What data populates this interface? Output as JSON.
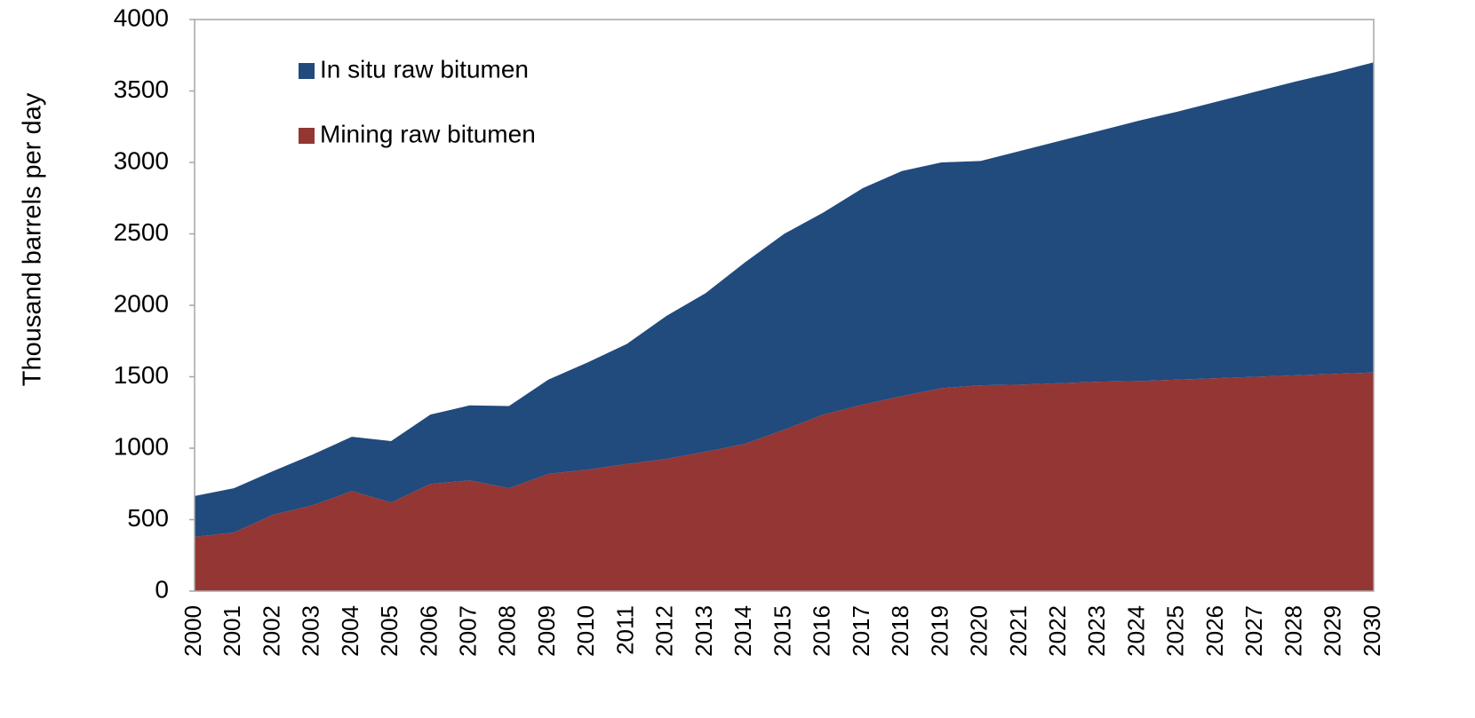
{
  "chart_data": {
    "type": "stacked_area",
    "y_label": "Thousand barrels per day",
    "categories": [
      "2000",
      "2001",
      "2002",
      "2003",
      "2004",
      "2005",
      "2006",
      "2007",
      "2008",
      "2009",
      "2010",
      "2011",
      "2012",
      "2013",
      "2014",
      "2015",
      "2016",
      "2017",
      "2018",
      "2019",
      "2020",
      "2021",
      "2022",
      "2023",
      "2024",
      "2025",
      "2026",
      "2027",
      "2028",
      "2029",
      "2030"
    ],
    "series": [
      {
        "name": "Mining raw bitumen",
        "color": "#943634",
        "values": [
          380,
          410,
          535,
          600,
          700,
          620,
          750,
          775,
          720,
          820,
          850,
          890,
          925,
          975,
          1030,
          1130,
          1235,
          1305,
          1365,
          1420,
          1440,
          1445,
          1455,
          1465,
          1470,
          1480,
          1490,
          1500,
          1510,
          1520,
          1530
        ]
      },
      {
        "name": "In situ raw bitumen",
        "color": "#214a7d",
        "values": [
          285,
          310,
          305,
          355,
          380,
          430,
          485,
          525,
          575,
          660,
          750,
          840,
          1000,
          1110,
          1270,
          1370,
          1415,
          1515,
          1575,
          1580,
          1570,
          1635,
          1695,
          1755,
          1820,
          1875,
          1935,
          1995,
          2055,
          2110,
          2170
        ]
      }
    ],
    "ylim": [
      0,
      4000
    ],
    "yticks": [
      0,
      500,
      1000,
      1500,
      2000,
      2500,
      3000,
      3500,
      4000
    ],
    "grid": false,
    "legend": "top-left"
  }
}
